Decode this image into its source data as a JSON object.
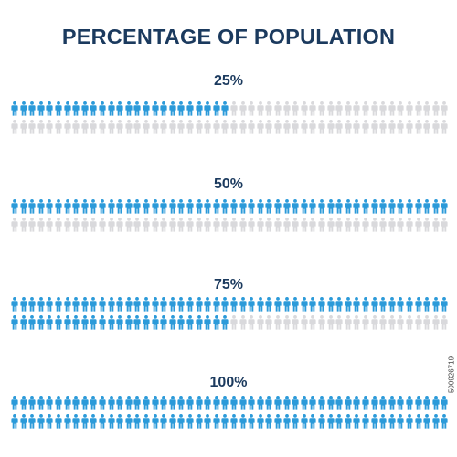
{
  "title": "PERCENTAGE OF POPULATION",
  "watermark_id": "500926719",
  "colors": {
    "title": "#1b3a5e",
    "filled": "#2b9ad9",
    "empty": "#d9d9dc"
  },
  "icon": "person-icon",
  "chart_data": {
    "type": "pictograph",
    "icons_per_row": 50,
    "rows_per_group": 2,
    "title": "PERCENTAGE OF POPULATION",
    "groups": [
      {
        "label": "25%",
        "value": 25
      },
      {
        "label": "50%",
        "value": 50
      },
      {
        "label": "75%",
        "value": 75
      },
      {
        "label": "100%",
        "value": 100
      }
    ]
  }
}
